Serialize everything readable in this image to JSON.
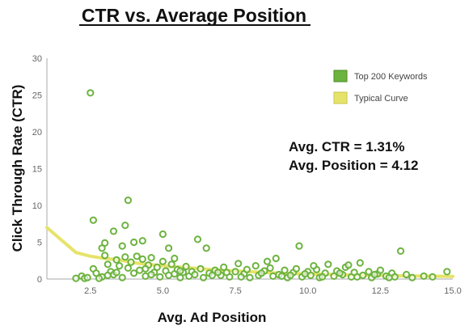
{
  "chart_data": {
    "type": "scatter",
    "title": "CTR vs. Average Position",
    "xlabel": "Avg. Ad Position",
    "ylabel": "Click Through Rate (CTR)",
    "xlim": [
      1,
      15
    ],
    "ylim": [
      0,
      30
    ],
    "x_ticks": [
      2.5,
      5.0,
      7.5,
      10.0,
      12.5,
      15.0
    ],
    "x_tick_labels": [
      "2.5",
      "5.0",
      "7.5",
      "10.0",
      "12.5",
      "15.0"
    ],
    "y_ticks": [
      0,
      5,
      10,
      15,
      20,
      25,
      30
    ],
    "y_tick_labels": [
      "0",
      "5",
      "10",
      "15",
      "20",
      "25",
      "30"
    ],
    "grid": false,
    "legend_position": "top-right",
    "annotations": [
      "Avg. CTR = 1.31%",
      "Avg. Position = 4.12"
    ],
    "colors": {
      "points": "#6db33f",
      "curve": "#e6e36a"
    },
    "series": [
      {
        "name": "Top 200 Keywords",
        "type": "scatter",
        "points": [
          [
            2.5,
            25.3
          ],
          [
            2.6,
            8.0
          ],
          [
            3.8,
            10.7
          ],
          [
            3.7,
            7.3
          ],
          [
            3.3,
            6.5
          ],
          [
            4.3,
            5.2
          ],
          [
            4.0,
            5.0
          ],
          [
            3.0,
            4.9
          ],
          [
            2.9,
            4.2
          ],
          [
            5.0,
            6.1
          ],
          [
            5.2,
            4.2
          ],
          [
            6.2,
            5.4
          ],
          [
            6.5,
            4.2
          ],
          [
            3.6,
            4.5
          ],
          [
            2.2,
            0.4
          ],
          [
            2.3,
            0.1
          ],
          [
            2.4,
            0.2
          ],
          [
            2.6,
            1.4
          ],
          [
            2.7,
            0.8
          ],
          [
            2.9,
            0.3
          ],
          [
            3.0,
            3.2
          ],
          [
            3.1,
            2.0
          ],
          [
            3.2,
            1.0
          ],
          [
            3.3,
            0.6
          ],
          [
            3.4,
            2.6
          ],
          [
            3.5,
            1.8
          ],
          [
            3.6,
            0.2
          ],
          [
            3.7,
            3.0
          ],
          [
            3.8,
            1.5
          ],
          [
            3.9,
            2.3
          ],
          [
            4.0,
            0.8
          ],
          [
            4.1,
            3.1
          ],
          [
            4.2,
            1.2
          ],
          [
            4.3,
            2.7
          ],
          [
            4.4,
            0.4
          ],
          [
            4.5,
            1.9
          ],
          [
            4.6,
            2.9
          ],
          [
            4.7,
            0.9
          ],
          [
            4.8,
            1.6
          ],
          [
            4.9,
            0.3
          ],
          [
            5.0,
            2.4
          ],
          [
            5.1,
            1.1
          ],
          [
            5.2,
            0.5
          ],
          [
            5.3,
            2.0
          ],
          [
            5.4,
            0.7
          ],
          [
            5.5,
            1.3
          ],
          [
            5.6,
            0.2
          ],
          [
            5.7,
            0.9
          ],
          [
            5.8,
            1.7
          ],
          [
            5.9,
            0.4
          ],
          [
            6.0,
            1.0
          ],
          [
            6.1,
            0.6
          ],
          [
            6.3,
            1.4
          ],
          [
            6.4,
            0.2
          ],
          [
            6.6,
            0.8
          ],
          [
            6.8,
            1.2
          ],
          [
            7.0,
            0.5
          ],
          [
            7.1,
            1.6
          ],
          [
            7.3,
            0.3
          ],
          [
            7.5,
            1.0
          ],
          [
            7.6,
            2.1
          ],
          [
            7.8,
            0.7
          ],
          [
            7.9,
            1.3
          ],
          [
            8.0,
            0.2
          ],
          [
            8.2,
            1.8
          ],
          [
            8.3,
            0.5
          ],
          [
            8.5,
            1.1
          ],
          [
            8.6,
            2.4
          ],
          [
            8.8,
            0.4
          ],
          [
            8.9,
            2.8
          ],
          [
            9.0,
            0.6
          ],
          [
            9.2,
            1.2
          ],
          [
            9.3,
            0.2
          ],
          [
            9.5,
            0.9
          ],
          [
            9.6,
            1.4
          ],
          [
            9.7,
            4.5
          ],
          [
            9.8,
            0.3
          ],
          [
            10.0,
            1.0
          ],
          [
            10.1,
            0.5
          ],
          [
            10.3,
            1.3
          ],
          [
            10.4,
            0.2
          ],
          [
            10.6,
            0.8
          ],
          [
            10.7,
            2.0
          ],
          [
            10.9,
            0.4
          ],
          [
            11.0,
            1.1
          ],
          [
            11.2,
            0.6
          ],
          [
            11.3,
            1.6
          ],
          [
            11.5,
            0.3
          ],
          [
            11.6,
            0.9
          ],
          [
            11.8,
            2.2
          ],
          [
            11.9,
            0.5
          ],
          [
            12.1,
            1.0
          ],
          [
            12.2,
            0.2
          ],
          [
            12.4,
            0.7
          ],
          [
            12.5,
            1.2
          ],
          [
            12.7,
            0.4
          ],
          [
            12.9,
            0.8
          ],
          [
            13.0,
            0.3
          ],
          [
            13.2,
            3.8
          ],
          [
            13.4,
            0.6
          ],
          [
            13.6,
            0.2
          ],
          [
            14.0,
            0.4
          ],
          [
            14.3,
            0.3
          ],
          [
            14.8,
            1.0
          ],
          [
            2.8,
            0.1
          ],
          [
            3.4,
            0.9
          ],
          [
            4.4,
            1.4
          ],
          [
            5.6,
            1.1
          ],
          [
            6.9,
            0.9
          ],
          [
            7.7,
            0.3
          ],
          [
            8.4,
            0.8
          ],
          [
            9.1,
            0.4
          ],
          [
            9.9,
            0.7
          ],
          [
            10.5,
            0.3
          ],
          [
            11.1,
            0.8
          ],
          [
            11.7,
            0.3
          ],
          [
            12.3,
            0.6
          ],
          [
            12.8,
            0.2
          ],
          [
            6.7,
            0.5
          ],
          [
            5.4,
            2.8
          ],
          [
            4.6,
            0.6
          ],
          [
            3.1,
            0.5
          ],
          [
            2.0,
            0.1
          ],
          [
            8.7,
            1.5
          ],
          [
            7.2,
            0.9
          ],
          [
            10.2,
            1.8
          ],
          [
            11.4,
            1.9
          ],
          [
            9.4,
            0.5
          ]
        ]
      },
      {
        "name": "Typical Curve",
        "type": "line",
        "points": [
          [
            1.0,
            7.0
          ],
          [
            1.5,
            5.3
          ],
          [
            2.0,
            3.6
          ],
          [
            2.5,
            3.1
          ],
          [
            3.0,
            2.8
          ],
          [
            3.5,
            2.6
          ],
          [
            4.0,
            2.2
          ],
          [
            5.0,
            1.8
          ],
          [
            6.0,
            1.5
          ],
          [
            7.0,
            1.2
          ],
          [
            8.0,
            1.0
          ],
          [
            9.0,
            0.8
          ],
          [
            10.0,
            0.7
          ],
          [
            11.0,
            0.6
          ],
          [
            12.0,
            0.5
          ],
          [
            13.0,
            0.45
          ],
          [
            14.0,
            0.4
          ],
          [
            15.0,
            0.35
          ]
        ]
      }
    ]
  }
}
